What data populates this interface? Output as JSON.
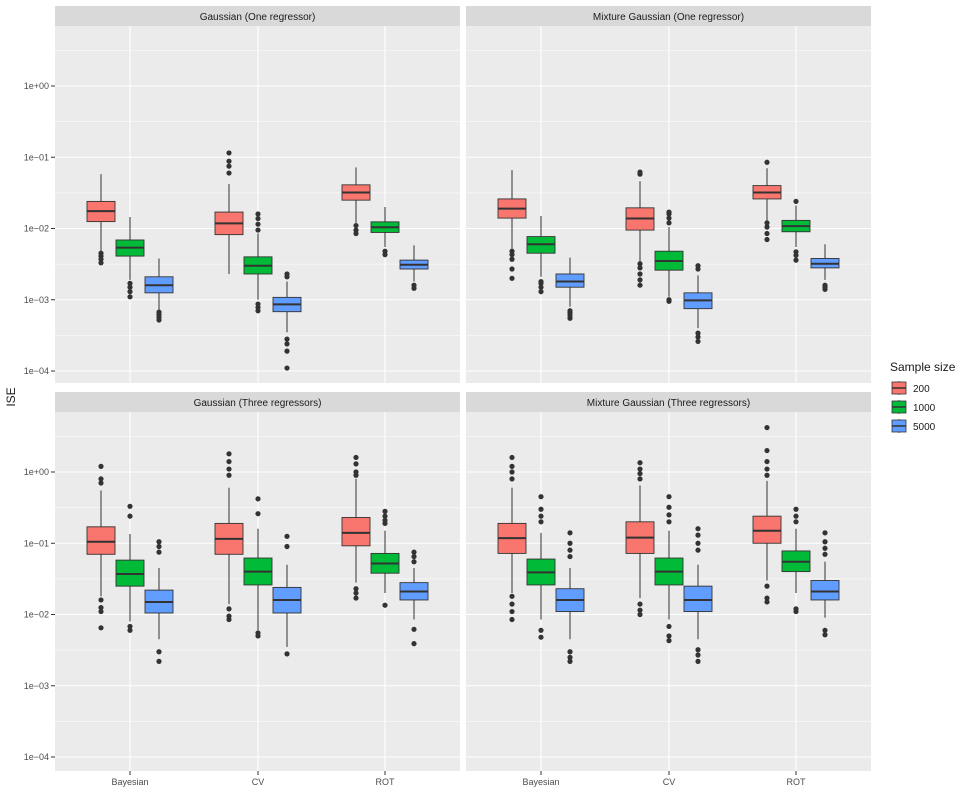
{
  "chart_data": {
    "type": "boxplot",
    "scale": "log10",
    "ylabel": "ISE",
    "y_ticks": [
      {
        "value": 1,
        "label": "1e+00"
      },
      {
        "value": 0.1,
        "label": "1e−01"
      },
      {
        "value": 0.01,
        "label": "1e−02"
      },
      {
        "value": 0.001,
        "label": "1e−03"
      },
      {
        "value": 0.0001,
        "label": "1e−04"
      }
    ],
    "categories": [
      "Bayesian",
      "CV",
      "ROT"
    ],
    "legend": {
      "title": "Sample size",
      "entries": [
        {
          "name": "200",
          "color": "#F8766D"
        },
        {
          "name": "1000",
          "color": "#00BA38"
        },
        {
          "name": "5000",
          "color": "#619CFF"
        }
      ]
    },
    "panels": [
      {
        "title": "Gaussian (One regressor)",
        "groups": [
          {
            "method": "Bayesian",
            "boxes": [
              {
                "size": "200",
                "lw": 0.0045,
                "q1": 0.0125,
                "med": 0.0175,
                "q3": 0.024,
                "uw": 0.058,
                "outliers": [
                  0.0033,
                  0.0037,
                  0.0041,
                  0.0045
                ]
              },
              {
                "size": "1000",
                "lw": 0.0019,
                "q1": 0.0041,
                "med": 0.0054,
                "q3": 0.0069,
                "uw": 0.0145,
                "outliers": [
                  0.0011,
                  0.0013,
                  0.0015,
                  0.0017
                ]
              },
              {
                "size": "5000",
                "lw": 0.0007,
                "q1": 0.00125,
                "med": 0.0016,
                "q3": 0.0021,
                "uw": 0.0038,
                "outliers": [
                  0.00052,
                  0.00057,
                  0.00062,
                  0.00067
                ]
              }
            ]
          },
          {
            "method": "CV",
            "boxes": [
              {
                "size": "200",
                "lw": 0.0023,
                "q1": 0.0082,
                "med": 0.0118,
                "q3": 0.017,
                "uw": 0.042,
                "outliers": [
                  0.06,
                  0.075,
                  0.088,
                  0.115
                ]
              },
              {
                "size": "1000",
                "lw": 0.001,
                "q1": 0.0023,
                "med": 0.003,
                "q3": 0.004,
                "uw": 0.0085,
                "outliers": [
                  0.0007,
                  0.00078,
                  0.00087,
                  0.0095,
                  0.0115,
                  0.0138,
                  0.016
                ]
              },
              {
                "size": "5000",
                "lw": 0.00035,
                "q1": 0.00068,
                "med": 0.00086,
                "q3": 0.00108,
                "uw": 0.0018,
                "outliers": [
                  0.00011,
                  0.00019,
                  0.00024,
                  0.00028,
                  0.0021,
                  0.0023
                ]
              }
            ]
          },
          {
            "method": "ROT",
            "boxes": [
              {
                "size": "200",
                "lw": 0.012,
                "q1": 0.025,
                "med": 0.032,
                "q3": 0.041,
                "uw": 0.072,
                "outliers": [
                  0.0085,
                  0.0095,
                  0.011
                ]
              },
              {
                "size": "1000",
                "lw": 0.0055,
                "q1": 0.0088,
                "med": 0.0104,
                "q3": 0.0124,
                "uw": 0.02,
                "outliers": [
                  0.0043,
                  0.0048
                ]
              },
              {
                "size": "5000",
                "lw": 0.0018,
                "q1": 0.0027,
                "med": 0.0031,
                "q3": 0.0036,
                "uw": 0.0058,
                "outliers": [
                  0.00145,
                  0.0016
                ]
              }
            ]
          }
        ]
      },
      {
        "title": "Mixture Gaussian (One regressor)",
        "groups": [
          {
            "method": "Bayesian",
            "boxes": [
              {
                "size": "200",
                "lw": 0.0052,
                "q1": 0.014,
                "med": 0.019,
                "q3": 0.026,
                "uw": 0.066,
                "outliers": [
                  0.002,
                  0.0027,
                  0.0037,
                  0.0043,
                  0.0048
                ]
              },
              {
                "size": "1000",
                "lw": 0.0021,
                "q1": 0.0045,
                "med": 0.006,
                "q3": 0.0077,
                "uw": 0.015,
                "outliers": [
                  0.0013,
                  0.0015,
                  0.0017,
                  0.0018
                ]
              },
              {
                "size": "5000",
                "lw": 0.0008,
                "q1": 0.0015,
                "med": 0.0018,
                "q3": 0.0023,
                "uw": 0.0039,
                "outliers": [
                  0.00055,
                  0.0006,
                  0.00065,
                  0.0007
                ]
              }
            ]
          },
          {
            "method": "CV",
            "boxes": [
              {
                "size": "200",
                "lw": 0.0034,
                "q1": 0.0095,
                "med": 0.0138,
                "q3": 0.0195,
                "uw": 0.046,
                "outliers": [
                  0.0016,
                  0.0019,
                  0.0023,
                  0.0028,
                  0.0032,
                  0.058,
                  0.062
                ]
              },
              {
                "size": "1000",
                "lw": 0.0011,
                "q1": 0.0026,
                "med": 0.0035,
                "q3": 0.0048,
                "uw": 0.0105,
                "outliers": [
                  0.00095,
                  0.001,
                  0.012,
                  0.014,
                  0.016,
                  0.017
                ]
              },
              {
                "size": "5000",
                "lw": 0.0004,
                "q1": 0.00075,
                "med": 0.00098,
                "q3": 0.00125,
                "uw": 0.0022,
                "outliers": [
                  0.00026,
                  0.0003,
                  0.00034,
                  0.0027,
                  0.003
                ]
              }
            ]
          },
          {
            "method": "ROT",
            "boxes": [
              {
                "size": "200",
                "lw": 0.013,
                "q1": 0.026,
                "med": 0.032,
                "q3": 0.04,
                "uw": 0.07,
                "outliers": [
                  0.007,
                  0.0085,
                  0.0105,
                  0.012,
                  0.085
                ]
              },
              {
                "size": "1000",
                "lw": 0.0055,
                "q1": 0.009,
                "med": 0.0108,
                "q3": 0.013,
                "uw": 0.021,
                "outliers": [
                  0.0036,
                  0.0042,
                  0.0047,
                  0.024
                ]
              },
              {
                "size": "5000",
                "lw": 0.0019,
                "q1": 0.0028,
                "med": 0.0032,
                "q3": 0.0038,
                "uw": 0.006,
                "outliers": [
                  0.0014,
                  0.0015,
                  0.0016
                ]
              }
            ]
          }
        ]
      },
      {
        "title": "Gaussian (Three regressors)",
        "groups": [
          {
            "method": "Bayesian",
            "boxes": [
              {
                "size": "200",
                "lw": 0.018,
                "q1": 0.07,
                "med": 0.105,
                "q3": 0.17,
                "uw": 0.55,
                "outliers": [
                  0.0065,
                  0.011,
                  0.0125,
                  0.016,
                  0.7,
                  0.8,
                  1.2
                ]
              },
              {
                "size": "1000",
                "lw": 0.008,
                "q1": 0.025,
                "med": 0.037,
                "q3": 0.058,
                "uw": 0.135,
                "outliers": [
                  0.006,
                  0.0068,
                  0.24,
                  0.33
                ]
              },
              {
                "size": "5000",
                "lw": 0.0045,
                "q1": 0.0105,
                "med": 0.015,
                "q3": 0.022,
                "uw": 0.045,
                "outliers": [
                  0.0022,
                  0.003,
                  0.075,
                  0.09,
                  0.105
                ]
              }
            ]
          },
          {
            "method": "CV",
            "boxes": [
              {
                "size": "200",
                "lw": 0.014,
                "q1": 0.07,
                "med": 0.115,
                "q3": 0.19,
                "uw": 0.6,
                "outliers": [
                  0.0085,
                  0.0095,
                  0.012,
                  0.9,
                  1.1,
                  1.4,
                  1.8
                ]
              },
              {
                "size": "1000",
                "lw": 0.006,
                "q1": 0.026,
                "med": 0.04,
                "q3": 0.062,
                "uw": 0.16,
                "outliers": [
                  0.005,
                  0.0055,
                  0.26,
                  0.42
                ]
              },
              {
                "size": "5000",
                "lw": 0.0035,
                "q1": 0.0105,
                "med": 0.016,
                "q3": 0.024,
                "uw": 0.05,
                "outliers": [
                  0.0028,
                  0.09,
                  0.125
                ]
              }
            ]
          },
          {
            "method": "ROT",
            "boxes": [
              {
                "size": "200",
                "lw": 0.028,
                "q1": 0.092,
                "med": 0.14,
                "q3": 0.23,
                "uw": 0.8,
                "outliers": [
                  0.017,
                  0.02,
                  0.023,
                  0.9,
                  1.0,
                  1.3,
                  1.6
                ]
              },
              {
                "size": "1000",
                "lw": 0.02,
                "q1": 0.038,
                "med": 0.052,
                "q3": 0.072,
                "uw": 0.15,
                "outliers": [
                  0.0135,
                  0.19,
                  0.21,
                  0.24,
                  0.28
                ]
              },
              {
                "size": "5000",
                "lw": 0.0085,
                "q1": 0.016,
                "med": 0.021,
                "q3": 0.028,
                "uw": 0.045,
                "outliers": [
                  0.0039,
                  0.0062,
                  0.055,
                  0.065,
                  0.075
                ]
              }
            ]
          }
        ]
      },
      {
        "title": "Mixture Gaussian (Three regressors)",
        "groups": [
          {
            "method": "Bayesian",
            "boxes": [
              {
                "size": "200",
                "lw": 0.02,
                "q1": 0.072,
                "med": 0.118,
                "q3": 0.19,
                "uw": 0.6,
                "outliers": [
                  0.0085,
                  0.011,
                  0.014,
                  0.018,
                  0.8,
                  1.0,
                  1.2,
                  1.6
                ]
              },
              {
                "size": "1000",
                "lw": 0.0085,
                "q1": 0.026,
                "med": 0.039,
                "q3": 0.06,
                "uw": 0.14,
                "outliers": [
                  0.0048,
                  0.006,
                  0.2,
                  0.24,
                  0.3,
                  0.45
                ]
              },
              {
                "size": "5000",
                "lw": 0.0045,
                "q1": 0.011,
                "med": 0.016,
                "q3": 0.023,
                "uw": 0.045,
                "outliers": [
                  0.0022,
                  0.0025,
                  0.003,
                  0.065,
                  0.08,
                  0.1,
                  0.14
                ]
              }
            ]
          },
          {
            "method": "CV",
            "boxes": [
              {
                "size": "200",
                "lw": 0.017,
                "q1": 0.072,
                "med": 0.12,
                "q3": 0.2,
                "uw": 0.65,
                "outliers": [
                  0.01,
                  0.0115,
                  0.014,
                  0.8,
                  0.95,
                  1.1,
                  1.35
                ]
              },
              {
                "size": "1000",
                "lw": 0.0085,
                "q1": 0.026,
                "med": 0.04,
                "q3": 0.062,
                "uw": 0.15,
                "outliers": [
                  0.0043,
                  0.005,
                  0.0068,
                  0.2,
                  0.25,
                  0.32,
                  0.45
                ]
              },
              {
                "size": "5000",
                "lw": 0.0045,
                "q1": 0.011,
                "med": 0.016,
                "q3": 0.025,
                "uw": 0.05,
                "outliers": [
                  0.0022,
                  0.0027,
                  0.0032,
                  0.08,
                  0.1,
                  0.13,
                  0.16
                ]
              }
            ]
          },
          {
            "method": "ROT",
            "boxes": [
              {
                "size": "200",
                "lw": 0.03,
                "q1": 0.1,
                "med": 0.15,
                "q3": 0.24,
                "uw": 0.75,
                "outliers": [
                  0.015,
                  0.017,
                  0.025,
                  0.9,
                  1.1,
                  1.4,
                  2.0,
                  4.2
                ]
              },
              {
                "size": "1000",
                "lw": 0.02,
                "q1": 0.04,
                "med": 0.055,
                "q3": 0.078,
                "uw": 0.16,
                "outliers": [
                  0.011,
                  0.012,
                  0.2,
                  0.24,
                  0.3
                ]
              },
              {
                "size": "5000",
                "lw": 0.009,
                "q1": 0.016,
                "med": 0.021,
                "q3": 0.03,
                "uw": 0.055,
                "outliers": [
                  0.0052,
                  0.006,
                  0.07,
                  0.085,
                  0.105,
                  0.14
                ]
              }
            ]
          }
        ]
      }
    ]
  }
}
